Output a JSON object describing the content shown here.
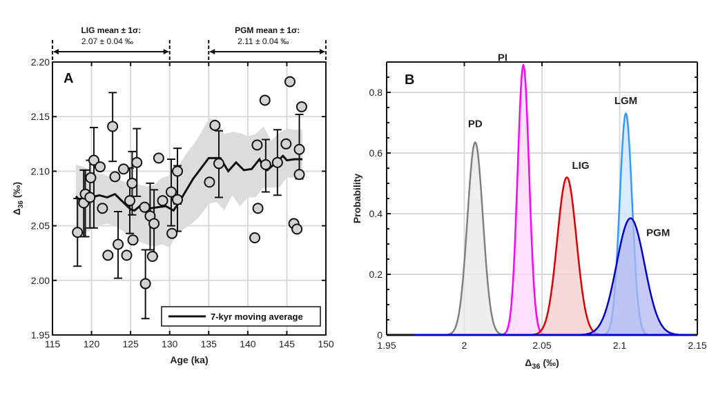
{
  "chart_data": [
    {
      "id": "A",
      "type": "scatter",
      "panel_label": "A",
      "title": "",
      "xlabel": "Age (ka)",
      "ylabel": "Δ36 (‰)",
      "ylabel_main": "Δ",
      "ylabel_sub": "36",
      "ylabel_unit": " (‰)",
      "xlim": [
        115,
        150
      ],
      "ylim": [
        1.95,
        2.2
      ],
      "xticks": [
        115,
        120,
        125,
        130,
        135,
        140,
        145,
        150
      ],
      "yticks": [
        1.95,
        2.0,
        2.05,
        2.1,
        2.15,
        2.2
      ],
      "ytick_labels": [
        "1.95",
        "2.00",
        "2.05",
        "2.10",
        "2.15",
        "2.20"
      ],
      "grid": true,
      "legend": {
        "position": "bottom-right",
        "entries": [
          "7-kyr moving average"
        ]
      },
      "points": [
        {
          "x": 118.2,
          "y": 2.044,
          "err_lo": 2.013,
          "err_hi": 2.075
        },
        {
          "x": 119.0,
          "y": 2.071,
          "err_lo": 2.04,
          "err_hi": 2.101
        },
        {
          "x": 119.2,
          "y": 2.079,
          "err_lo": 2.04,
          "err_hi": 2.101
        },
        {
          "x": 119.8,
          "y": 2.076,
          "err_lo": 2.048,
          "err_hi": 2.11
        },
        {
          "x": 119.9,
          "y": 2.094
        },
        {
          "x": 120.3,
          "y": 2.11,
          "err_lo": 2.048,
          "err_hi": 2.14
        },
        {
          "x": 121.1,
          "y": 2.104
        },
        {
          "x": 121.4,
          "y": 2.066
        },
        {
          "x": 122.1,
          "y": 2.023
        },
        {
          "x": 122.7,
          "y": 2.141,
          "err_lo": 2.109,
          "err_hi": 2.172
        },
        {
          "x": 123.0,
          "y": 2.095
        },
        {
          "x": 123.4,
          "y": 2.033,
          "err_lo": 2.002,
          "err_hi": 2.063
        },
        {
          "x": 124.1,
          "y": 2.102
        },
        {
          "x": 124.5,
          "y": 2.023
        },
        {
          "x": 124.9,
          "y": 2.073,
          "err_lo": 2.043,
          "err_hi": 2.103
        },
        {
          "x": 125.2,
          "y": 2.089,
          "err_lo": 2.06,
          "err_hi": 2.118
        },
        {
          "x": 125.3,
          "y": 2.037
        },
        {
          "x": 125.8,
          "y": 2.108,
          "err_lo": 2.077,
          "err_hi": 2.139
        },
        {
          "x": 126.8,
          "y": 2.067
        },
        {
          "x": 126.9,
          "y": 1.997,
          "err_lo": 1.965,
          "err_hi": 2.028
        },
        {
          "x": 127.5,
          "y": 2.059,
          "err_lo": 2.028,
          "err_hi": 2.089
        },
        {
          "x": 127.8,
          "y": 2.022
        },
        {
          "x": 128.0,
          "y": 2.052,
          "err_lo": 2.022,
          "err_hi": 2.083
        },
        {
          "x": 128.6,
          "y": 2.112
        },
        {
          "x": 129.1,
          "y": 2.073
        },
        {
          "x": 130.2,
          "y": 2.081,
          "err_lo": 2.05,
          "err_hi": 2.111
        },
        {
          "x": 130.3,
          "y": 2.043
        },
        {
          "x": 131.0,
          "y": 2.074,
          "err_lo": 2.045,
          "err_hi": 2.105
        },
        {
          "x": 131.0,
          "y": 2.1,
          "err_lo": 2.07,
          "err_hi": 2.121
        },
        {
          "x": 135.1,
          "y": 2.09
        },
        {
          "x": 135.8,
          "y": 2.142
        },
        {
          "x": 136.3,
          "y": 2.107,
          "err_lo": 2.076,
          "err_hi": 2.137
        },
        {
          "x": 140.9,
          "y": 2.039
        },
        {
          "x": 141.2,
          "y": 2.124
        },
        {
          "x": 141.3,
          "y": 2.066
        },
        {
          "x": 142.2,
          "y": 2.165
        },
        {
          "x": 142.3,
          "y": 2.106,
          "err_lo": 2.081,
          "err_hi": 2.129
        },
        {
          "x": 143.8,
          "y": 2.108,
          "err_lo": 2.078,
          "err_hi": 2.138
        },
        {
          "x": 144.9,
          "y": 2.125
        },
        {
          "x": 145.4,
          "y": 2.182
        },
        {
          "x": 145.9,
          "y": 2.052
        },
        {
          "x": 146.3,
          "y": 2.047
        },
        {
          "x": 146.6,
          "y": 2.12,
          "err_lo": 2.093,
          "err_hi": 2.152
        },
        {
          "x": 146.6,
          "y": 2.097
        },
        {
          "x": 146.9,
          "y": 2.159
        }
      ],
      "moving_average": {
        "name": "7-kyr moving average",
        "x": [
          118.0,
          119.0,
          120.0,
          121.0,
          122.0,
          123.0,
          124.0,
          125.0,
          125.5,
          126.5,
          127.5,
          128.5,
          129.5,
          130.5,
          131.5,
          133.0,
          135.0,
          136.5,
          137.5,
          138.5,
          139.5,
          140.5,
          141.5,
          142.0,
          142.5,
          143.5,
          144.5,
          145.0,
          146.0,
          147.0
        ],
        "y": [
          2.077,
          2.07,
          2.076,
          2.078,
          2.076,
          2.079,
          2.072,
          2.065,
          2.064,
          2.07,
          2.066,
          2.067,
          2.068,
          2.064,
          2.075,
          2.093,
          2.112,
          2.112,
          2.1,
          2.108,
          2.101,
          2.102,
          2.111,
          2.104,
          2.101,
          2.107,
          2.114,
          2.11,
          2.111,
          2.111
        ]
      },
      "band": {
        "x": [
          118.0,
          119.0,
          120.0,
          121.0,
          122.0,
          123.0,
          124.0,
          125.0,
          126.0,
          127.0,
          128.0,
          129.0,
          130.0,
          131.0,
          132.0,
          133.0,
          134.0,
          135.0,
          136.0,
          137.0,
          138.0,
          139.0,
          140.0,
          141.0,
          142.0,
          143.0,
          144.0,
          145.0,
          146.0,
          147.0
        ],
        "upper": [
          2.106,
          2.104,
          2.1,
          2.098,
          2.096,
          2.093,
          2.091,
          2.089,
          2.088,
          2.086,
          2.087,
          2.094,
          2.096,
          2.103,
          2.115,
          2.124,
          2.135,
          2.148,
          2.148,
          2.134,
          2.136,
          2.135,
          2.132,
          2.134,
          2.141,
          2.128,
          2.135,
          2.139,
          2.138,
          2.138
        ],
        "lower": [
          2.043,
          2.042,
          2.047,
          2.05,
          2.052,
          2.05,
          2.045,
          2.04,
          2.036,
          2.033,
          2.031,
          2.033,
          2.03,
          2.043,
          2.048,
          2.053,
          2.06,
          2.07,
          2.072,
          2.064,
          2.078,
          2.068,
          2.076,
          2.076,
          2.085,
          2.085,
          2.085,
          2.094,
          2.094,
          2.094
        ]
      },
      "annotations": [
        {
          "title": "LIG mean ± 1σ:",
          "value": "2.07 ± 0.04 ‰",
          "x_range": [
            115,
            130
          ]
        },
        {
          "title": "PGM mean ± 1σ:",
          "value": "2.11 ± 0.04 ‰",
          "x_range": [
            135,
            150
          ]
        }
      ]
    },
    {
      "id": "B",
      "type": "area",
      "panel_label": "B",
      "title": "",
      "xlabel": "Δ36 (‰)",
      "xlabel_main": "Δ",
      "xlabel_sub": "36",
      "xlabel_unit": " (‰)",
      "ylabel": "Probability",
      "xlim": [
        1.95,
        2.15
      ],
      "ylim": [
        0,
        0.9
      ],
      "xticks": [
        1.95,
        2.0,
        2.05,
        2.1,
        2.15
      ],
      "xtick_labels": [
        "1.95",
        "2",
        "2.05",
        "2.1",
        "2.15"
      ],
      "yticks": [
        0,
        0.2,
        0.4,
        0.6,
        0.8
      ],
      "ytick_labels": [
        "0",
        "0.2",
        "0.4",
        "0.6",
        "0.8"
      ],
      "grid": true,
      "series": [
        {
          "name": "PD",
          "mean": 2.007,
          "sigma": 0.005,
          "peak": 0.635,
          "color": "#808080",
          "fill": "#e8e8e8"
        },
        {
          "name": "PI",
          "mean": 2.038,
          "sigma": 0.0037,
          "peak": 0.89,
          "color": "#ff00ff",
          "fill": "#ffd6ff"
        },
        {
          "name": "LIG",
          "mean": 2.066,
          "sigma": 0.0062,
          "peak": 0.52,
          "color": "#dd0000",
          "fill": "#f5cccc"
        },
        {
          "name": "LGM",
          "mean": 2.104,
          "sigma": 0.004,
          "peak": 0.73,
          "color": "#3399ff",
          "fill": "#cce6ff"
        },
        {
          "name": "PGM",
          "mean": 2.107,
          "sigma": 0.009,
          "peak": 0.385,
          "color": "#0000cc",
          "fill": "#b3b8f0"
        }
      ]
    }
  ]
}
